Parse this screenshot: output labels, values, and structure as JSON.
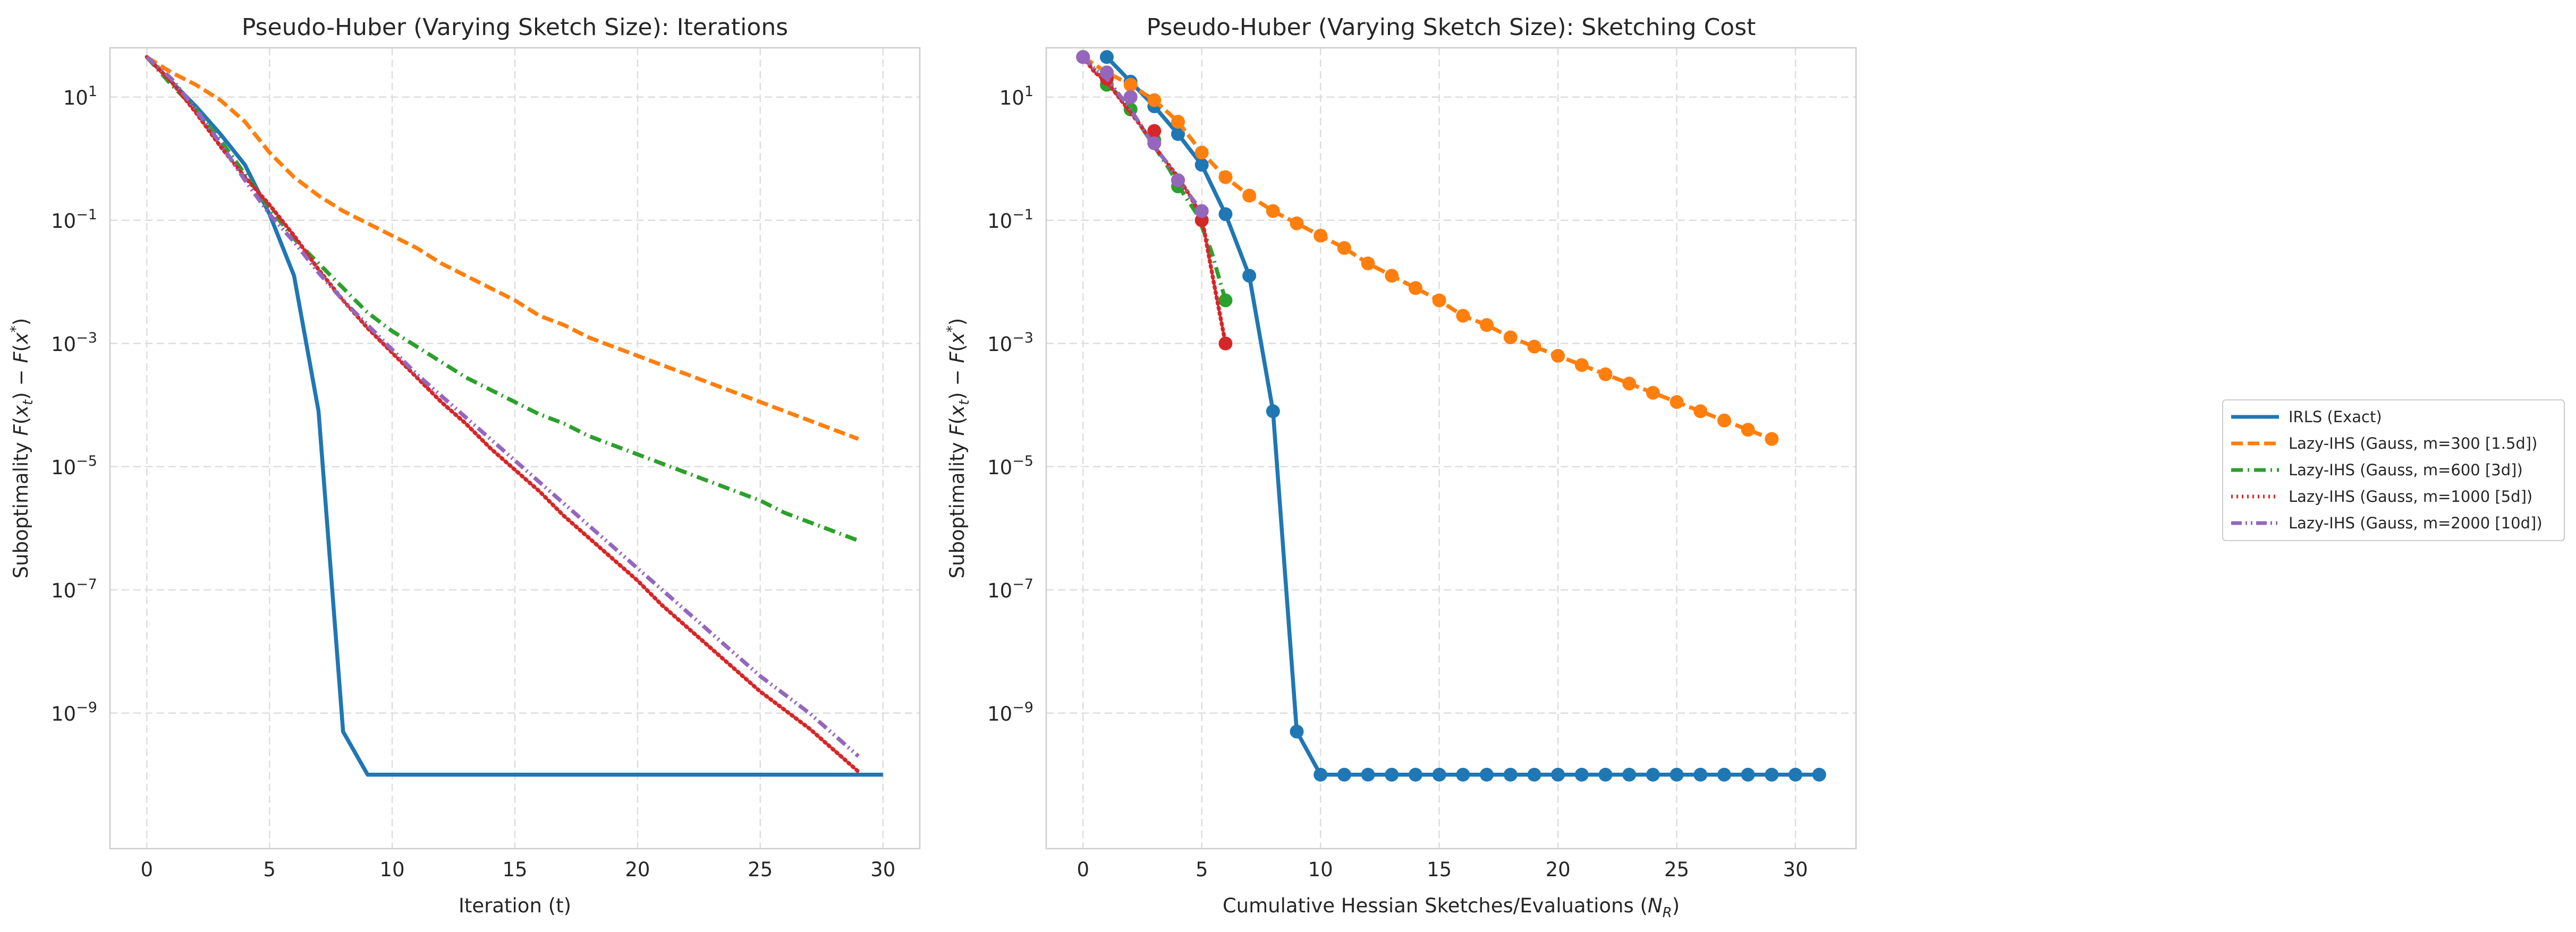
{
  "colors": {
    "irls": "#1f77b4",
    "m300": "#ff7f0e",
    "m600": "#2ca02c",
    "m1000": "#d62728",
    "m2000": "#9467bd",
    "grid": "#dddddd",
    "frame": "#cccccc"
  },
  "chart_data": [
    {
      "type": "line",
      "title": "Pseudo-Huber (Varying Sketch Size): Iterations",
      "xlabel": "Iteration (t)",
      "ylabel_parts": {
        "pre": "Suboptimality ",
        "F1": "F",
        "x1": "x",
        "sub_t": "t",
        "mid": ") − ",
        "F2": "F",
        "x2": "x",
        "sup_star": "*"
      },
      "yscale": "log",
      "xlim": [
        -1.5,
        31.5
      ],
      "ylim_exp": [
        -11.2,
        1.8
      ],
      "xticks": [
        0,
        5,
        10,
        15,
        20,
        25,
        30
      ],
      "yticks_exp": [
        -9,
        -7,
        -5,
        -3,
        -1,
        1
      ],
      "grid": true,
      "series": [
        {
          "name": "IRLS (Exact)",
          "key": "irls",
          "dash": "solid",
          "x": [
            0,
            1,
            2,
            3,
            4,
            5,
            6,
            7,
            8,
            9,
            10,
            11,
            12,
            13,
            14,
            15,
            16,
            17,
            18,
            19,
            20,
            21,
            22,
            23,
            24,
            25,
            26,
            27,
            28,
            29,
            30
          ],
          "log10y": [
            1.65,
            1.25,
            0.85,
            0.4,
            -0.1,
            -0.9,
            -1.9,
            -4.1,
            -9.3,
            -10.0,
            -10.0,
            -10.0,
            -10.0,
            -10.0,
            -10.0,
            -10.0,
            -10.0,
            -10.0,
            -10.0,
            -10.0,
            -10.0,
            -10.0,
            -10.0,
            -10.0,
            -10.0,
            -10.0,
            -10.0,
            -10.0,
            -10.0,
            -10.0,
            -10.0
          ]
        },
        {
          "name": "Lazy-IHS (Gauss, m=300 [1.5d])",
          "key": "m300",
          "dash": "dashed",
          "x": [
            0,
            1,
            2,
            3,
            4,
            5,
            6,
            7,
            8,
            9,
            10,
            11,
            12,
            13,
            14,
            15,
            16,
            17,
            18,
            19,
            20,
            21,
            22,
            23,
            24,
            25,
            26,
            27,
            28,
            29
          ],
          "log10y": [
            1.65,
            1.4,
            1.2,
            0.95,
            0.6,
            0.1,
            -0.3,
            -0.6,
            -0.85,
            -1.05,
            -1.25,
            -1.45,
            -1.7,
            -1.9,
            -2.1,
            -2.3,
            -2.55,
            -2.7,
            -2.9,
            -3.05,
            -3.2,
            -3.35,
            -3.5,
            -3.65,
            -3.8,
            -3.95,
            -4.1,
            -4.25,
            -4.4,
            -4.55
          ]
        },
        {
          "name": "Lazy-IHS (Gauss, m=600 [3d])",
          "key": "m600",
          "dash": "dashdot",
          "x": [
            0,
            1,
            2,
            3,
            4,
            5,
            6,
            7,
            8,
            9,
            10,
            11,
            12,
            13,
            14,
            15,
            16,
            17,
            18,
            19,
            20,
            21,
            22,
            23,
            24,
            25,
            26,
            27,
            28,
            29
          ],
          "log10y": [
            1.65,
            1.2,
            0.8,
            0.3,
            -0.25,
            -0.8,
            -1.3,
            -1.7,
            -2.1,
            -2.5,
            -2.8,
            -3.05,
            -3.3,
            -3.55,
            -3.75,
            -3.95,
            -4.15,
            -4.3,
            -4.5,
            -4.65,
            -4.8,
            -4.95,
            -5.1,
            -5.25,
            -5.4,
            -5.55,
            -5.75,
            -5.9,
            -6.05,
            -6.2
          ]
        },
        {
          "name": "Lazy-IHS (Gauss, m=1000 [5d])",
          "key": "m1000",
          "dash": "dotted",
          "x": [
            0,
            1,
            2,
            3,
            4,
            5,
            6,
            7,
            8,
            9,
            10,
            11,
            12,
            13,
            14,
            15,
            16,
            17,
            18,
            19,
            20,
            21,
            22,
            23,
            24,
            25,
            26,
            27,
            28,
            29
          ],
          "log10y": [
            1.65,
            1.25,
            0.75,
            0.2,
            -0.3,
            -0.75,
            -1.25,
            -1.8,
            -2.3,
            -2.75,
            -3.15,
            -3.55,
            -3.95,
            -4.3,
            -4.7,
            -5.05,
            -5.4,
            -5.8,
            -6.15,
            -6.5,
            -6.85,
            -7.25,
            -7.6,
            -7.95,
            -8.3,
            -8.65,
            -8.95,
            -9.25,
            -9.6,
            -9.95
          ]
        },
        {
          "name": "Lazy-IHS (Gauss, m=2000 [10d])",
          "key": "m2000",
          "dash": "dashdotdot",
          "x": [
            0,
            1,
            2,
            3,
            4,
            5,
            6,
            7,
            8,
            9,
            10,
            11,
            12,
            13,
            14,
            15,
            16,
            17,
            18,
            19,
            20,
            21,
            22,
            23,
            24,
            25,
            26,
            27,
            28,
            29
          ],
          "log10y": [
            1.65,
            1.3,
            0.8,
            0.25,
            -0.35,
            -0.9,
            -1.35,
            -1.85,
            -2.3,
            -2.7,
            -3.1,
            -3.5,
            -3.85,
            -4.2,
            -4.55,
            -4.9,
            -5.25,
            -5.6,
            -5.95,
            -6.3,
            -6.65,
            -7.0,
            -7.35,
            -7.7,
            -8.05,
            -8.4,
            -8.7,
            -9.0,
            -9.35,
            -9.7
          ]
        }
      ]
    },
    {
      "type": "line",
      "title": "Pseudo-Huber (Varying Sketch Size): Sketching Cost",
      "xlabel_parts": {
        "pre": "Cumulative Hessian Sketches/Evaluations (",
        "N": "N",
        "sub": "R",
        "post": ")"
      },
      "ylabel_parts": {
        "pre": "Suboptimality ",
        "F1": "F",
        "x1": "x",
        "sub_t": "t",
        "mid": ") − ",
        "F2": "F",
        "x2": "x",
        "sup_star": "*"
      },
      "yscale": "log",
      "xlim": [
        -1.55,
        32.55
      ],
      "ylim_exp": [
        -11.2,
        1.8
      ],
      "xticks": [
        0,
        5,
        10,
        15,
        20,
        25,
        30
      ],
      "yticks_exp": [
        -9,
        -7,
        -5,
        -3,
        -1,
        1
      ],
      "grid": true,
      "series": [
        {
          "name": "IRLS (Exact)",
          "key": "irls",
          "dash": "solid",
          "markers": true,
          "x": [
            1,
            2,
            3,
            4,
            5,
            6,
            7,
            8,
            9,
            10,
            11,
            12,
            13,
            14,
            15,
            16,
            17,
            18,
            19,
            20,
            21,
            22,
            23,
            24,
            25,
            26,
            27,
            28,
            29,
            30,
            31
          ],
          "log10y": [
            1.65,
            1.25,
            0.85,
            0.4,
            -0.1,
            -0.9,
            -1.9,
            -4.1,
            -9.3,
            -10.0,
            -10.0,
            -10.0,
            -10.0,
            -10.0,
            -10.0,
            -10.0,
            -10.0,
            -10.0,
            -10.0,
            -10.0,
            -10.0,
            -10.0,
            -10.0,
            -10.0,
            -10.0,
            -10.0,
            -10.0,
            -10.0,
            -10.0,
            -10.0,
            -10.0
          ]
        },
        {
          "name": "Lazy-IHS (Gauss, m=300 [1.5d])",
          "key": "m300",
          "dash": "dashed",
          "markers": true,
          "x": [
            0,
            1,
            2,
            3,
            4,
            5,
            6,
            7,
            8,
            9,
            10,
            11,
            12,
            13,
            14,
            15,
            16,
            17,
            18,
            19,
            20,
            21,
            22,
            23,
            24,
            25,
            26,
            27,
            28,
            29
          ],
          "log10y": [
            1.65,
            1.4,
            1.2,
            0.95,
            0.6,
            0.1,
            -0.3,
            -0.6,
            -0.85,
            -1.05,
            -1.25,
            -1.45,
            -1.7,
            -1.9,
            -2.1,
            -2.3,
            -2.55,
            -2.7,
            -2.9,
            -3.05,
            -3.2,
            -3.35,
            -3.5,
            -3.65,
            -3.8,
            -3.95,
            -4.1,
            -4.25,
            -4.4,
            -4.55
          ]
        },
        {
          "name": "Lazy-IHS (Gauss, m=600 [3d])",
          "key": "m600",
          "dash": "dashdot",
          "x": [
            0,
            0.6,
            1.2,
            1.8,
            2.4,
            3,
            3.6,
            4.2,
            4.8,
            5.4,
            6
          ],
          "log10y": [
            1.65,
            1.4,
            1.15,
            0.9,
            0.55,
            0.2,
            -0.15,
            -0.55,
            -0.9,
            -1.5,
            -2.3
          ],
          "marker_x": [
            0,
            1,
            2,
            3,
            4,
            5,
            6
          ],
          "marker_log10y": [
            1.65,
            1.2,
            0.8,
            0.3,
            -0.45,
            -1.0,
            -2.3
          ]
        },
        {
          "name": "Lazy-IHS (Gauss, m=1000 [5d])",
          "key": "m1000",
          "dash": "dotted",
          "x": [
            0,
            0.5,
            1,
            1.5,
            2,
            2.5,
            3,
            3.5,
            4,
            4.5,
            5,
            5.5,
            6
          ],
          "log10y": [
            1.65,
            1.4,
            1.25,
            1.0,
            0.75,
            0.5,
            0.2,
            -0.05,
            -0.3,
            -0.6,
            -0.95,
            -2.0,
            -3.0
          ],
          "marker_x": [
            0,
            1,
            2,
            3,
            4,
            5,
            6
          ],
          "marker_log10y": [
            1.65,
            1.3,
            1.0,
            0.45,
            -0.35,
            -1.0,
            -3.0
          ]
        },
        {
          "name": "Lazy-IHS (Gauss, m=2000 [10d])",
          "key": "m2000",
          "dash": "dashdotdot",
          "x": [
            0,
            0.5,
            1,
            1.5,
            2,
            2.5,
            3,
            3.5,
            4,
            4.5,
            5
          ],
          "log10y": [
            1.65,
            1.45,
            1.3,
            1.05,
            0.8,
            0.5,
            0.2,
            -0.05,
            -0.35,
            -0.6,
            -0.85
          ],
          "marker_x": [
            0,
            1,
            2,
            3,
            4,
            5
          ],
          "marker_log10y": [
            1.65,
            1.4,
            1.0,
            0.25,
            -0.35,
            -0.85
          ]
        }
      ]
    }
  ],
  "legend": {
    "placement": "right",
    "entries": [
      {
        "key": "irls",
        "dash": "solid",
        "label": "IRLS (Exact)"
      },
      {
        "key": "m300",
        "dash": "dashed",
        "label": "Lazy-IHS (Gauss, m=300 [1.5d])"
      },
      {
        "key": "m600",
        "dash": "dashdot",
        "label": "Lazy-IHS (Gauss, m=600 [3d])"
      },
      {
        "key": "m1000",
        "dash": "dotted",
        "label": "Lazy-IHS (Gauss, m=1000 [5d])"
      },
      {
        "key": "m2000",
        "dash": "dashdotdot",
        "label": "Lazy-IHS (Gauss, m=2000 [10d])"
      }
    ]
  }
}
